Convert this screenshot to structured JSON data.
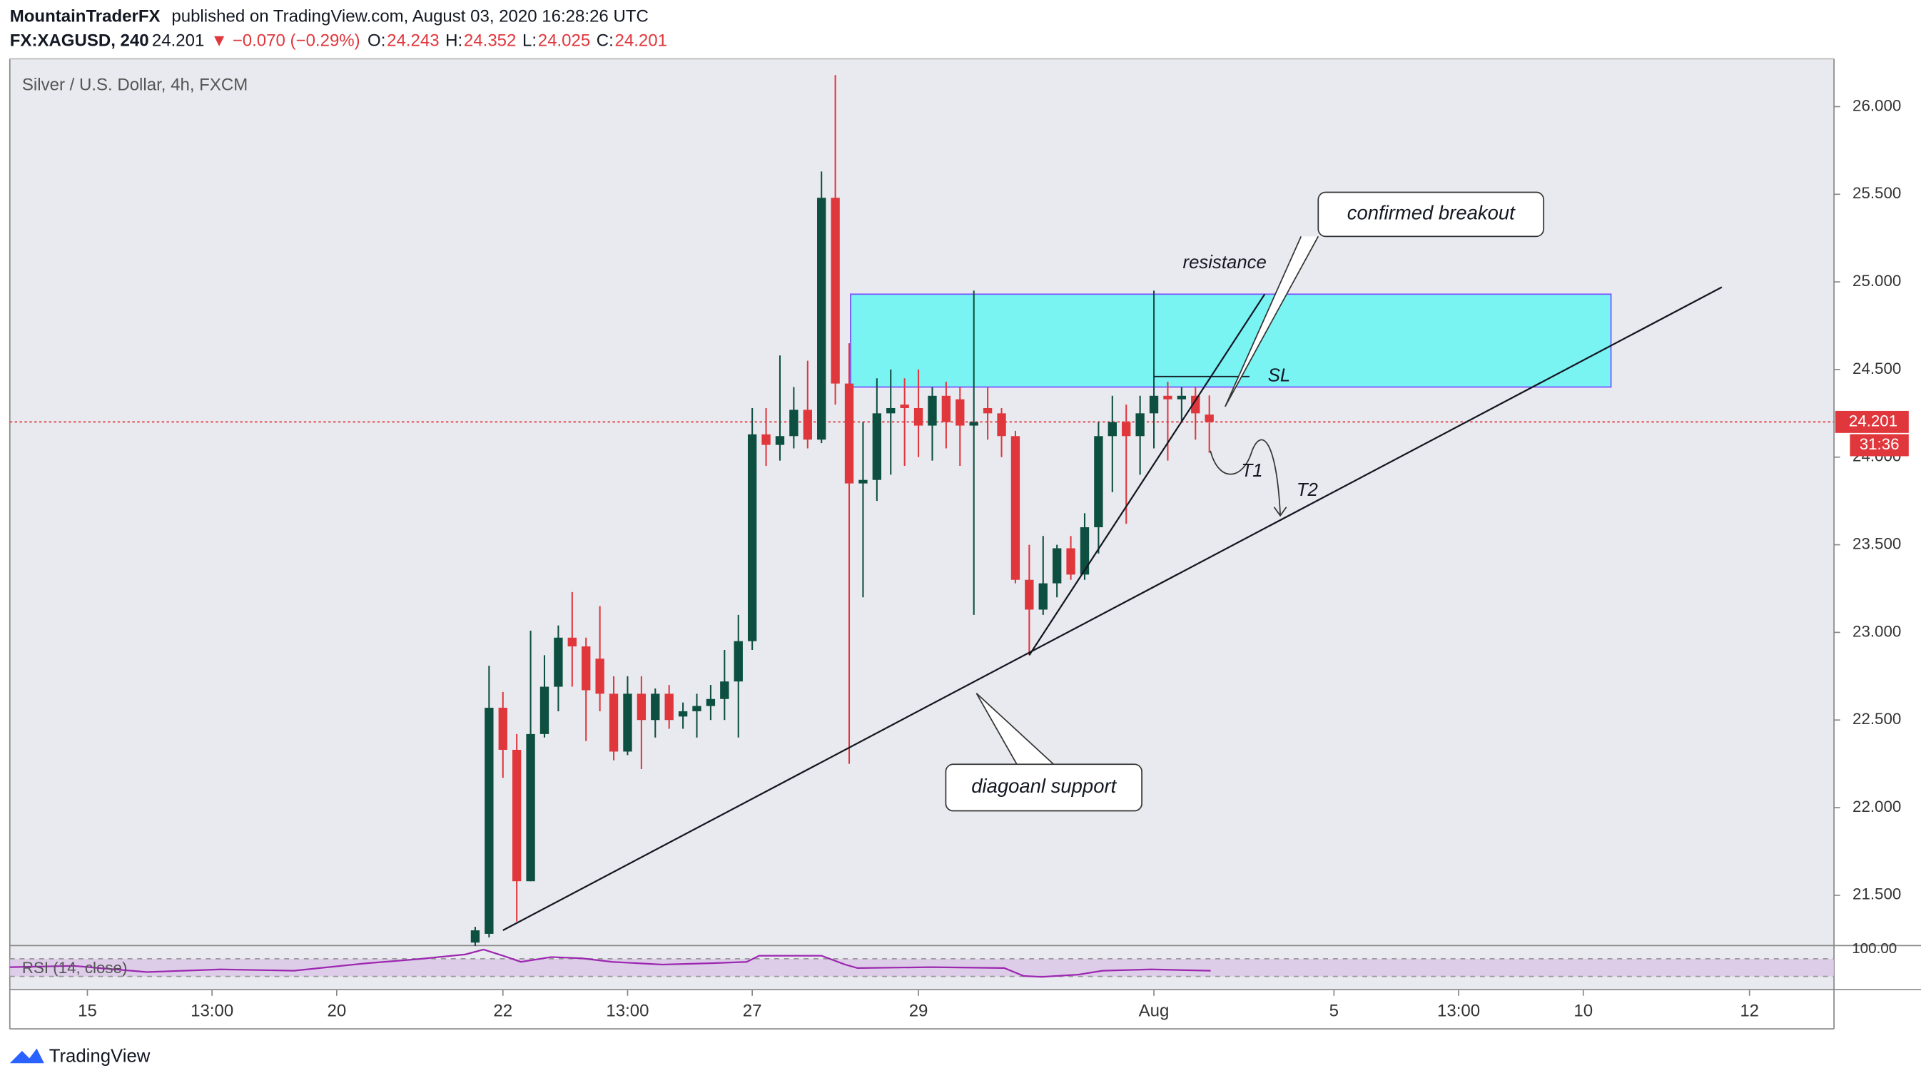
{
  "header": {
    "publisher": "MountainTraderFX",
    "published": "published on TradingView.com, August 03, 2020 16:28:26 UTC",
    "symbol": "FX:XAGUSD, 240",
    "last": "24.201",
    "change": "▼ −0.070 (−0.29%)",
    "quote": [
      {
        "k": "O:",
        "v": "24.243"
      },
      {
        "k": "H:",
        "v": "24.352"
      },
      {
        "k": "L:",
        "v": "24.025"
      },
      {
        "k": "C:",
        "v": "24.201"
      }
    ]
  },
  "footer": "TradingView",
  "chart_data": [
    {
      "type": "candlestick",
      "title": "Silver / U.S. Dollar, 4h, FXCM",
      "up_color": "#0d4f40",
      "down_color": "#e0373d",
      "x": [
        0,
        1,
        2,
        3,
        4,
        5,
        6,
        7,
        8,
        9,
        10,
        11,
        12,
        13,
        14,
        15,
        16,
        17,
        18,
        19,
        20,
        21,
        22,
        23,
        24,
        25,
        26,
        27,
        28,
        29,
        30,
        31,
        32,
        33,
        34,
        35,
        36,
        37,
        38,
        39,
        40,
        41,
        42,
        43,
        44,
        45,
        46,
        47,
        48,
        49,
        50,
        51,
        52,
        53
      ],
      "open": [
        21.23,
        21.28,
        22.57,
        22.33,
        21.58,
        22.42,
        22.69,
        22.97,
        22.92,
        22.85,
        22.65,
        22.32,
        22.65,
        22.5,
        22.65,
        22.52,
        22.55,
        22.58,
        22.62,
        22.72,
        22.95,
        24.13,
        24.07,
        24.12,
        24.27,
        24.1,
        25.48,
        24.42,
        23.85,
        23.87,
        24.25,
        24.3,
        24.28,
        24.18,
        24.35,
        24.33,
        24.18,
        24.28,
        24.25,
        24.12,
        23.3,
        23.13,
        23.28,
        23.48,
        23.33,
        23.6,
        24.12,
        24.2,
        24.12,
        24.25,
        24.35,
        24.33,
        24.35,
        24.243
      ],
      "high": [
        21.32,
        22.81,
        22.66,
        22.42,
        23.01,
        22.87,
        23.04,
        23.23,
        22.97,
        23.15,
        22.75,
        22.75,
        22.75,
        22.68,
        22.7,
        22.6,
        22.65,
        22.7,
        22.9,
        23.1,
        24.28,
        24.28,
        24.58,
        24.4,
        24.55,
        25.63,
        26.18,
        24.65,
        24.2,
        24.45,
        24.5,
        24.45,
        24.5,
        24.4,
        24.43,
        24.4,
        24.95,
        24.4,
        24.28,
        24.15,
        23.5,
        23.55,
        23.5,
        23.55,
        23.68,
        24.2,
        24.35,
        24.3,
        24.35,
        24.95,
        24.43,
        24.4,
        24.4,
        24.352
      ],
      "low": [
        21.21,
        21.26,
        22.17,
        21.35,
        21.58,
        22.4,
        22.55,
        22.69,
        22.38,
        22.55,
        22.27,
        22.3,
        22.22,
        22.4,
        22.45,
        22.45,
        22.4,
        22.5,
        22.5,
        22.4,
        22.9,
        23.95,
        23.98,
        24.05,
        24.05,
        24.08,
        24.3,
        22.25,
        23.2,
        23.75,
        23.9,
        23.95,
        24.0,
        23.98,
        24.05,
        23.95,
        23.1,
        24.1,
        24.0,
        23.28,
        22.87,
        23.1,
        23.2,
        23.3,
        23.3,
        23.45,
        23.8,
        23.62,
        23.9,
        24.05,
        23.98,
        24.2,
        24.1,
        24.025
      ],
      "close": [
        21.3,
        22.57,
        22.33,
        21.58,
        22.42,
        22.69,
        22.97,
        22.92,
        22.67,
        22.65,
        22.32,
        22.65,
        22.5,
        22.65,
        22.5,
        22.55,
        22.58,
        22.62,
        22.72,
        22.95,
        24.13,
        24.07,
        24.12,
        24.27,
        24.1,
        25.48,
        24.42,
        23.85,
        23.87,
        24.25,
        24.28,
        24.28,
        24.18,
        24.35,
        24.2,
        24.18,
        24.2,
        24.25,
        24.12,
        23.3,
        23.13,
        23.28,
        23.48,
        23.33,
        23.6,
        24.12,
        24.2,
        24.12,
        24.25,
        24.35,
        24.33,
        24.35,
        24.25,
        24.201
      ],
      "xlim": [
        -33.6,
        98.1
      ],
      "xticks": [
        {
          "value": -28,
          "label": "15"
        },
        {
          "value": -19,
          "label": "13:00"
        },
        {
          "value": -10,
          "label": "20"
        },
        {
          "value": 2,
          "label": "22"
        },
        {
          "value": 11,
          "label": "13:00"
        },
        {
          "value": 20,
          "label": "27"
        },
        {
          "value": 32,
          "label": "29"
        },
        {
          "value": 49,
          "label": "Aug"
        },
        {
          "value": 62,
          "label": "5"
        },
        {
          "value": 71,
          "label": "13:00"
        },
        {
          "value": 80,
          "label": "10"
        },
        {
          "value": 92,
          "label": "12"
        }
      ],
      "ylim": [
        21.213,
        26.273
      ],
      "yticks": [
        {
          "value": 21.5,
          "label": "21.500"
        },
        {
          "value": 22,
          "label": "22.000"
        },
        {
          "value": 22.5,
          "label": "22.500"
        },
        {
          "value": 23,
          "label": "23.000"
        },
        {
          "value": 23.5,
          "label": "23.500"
        },
        {
          "value": 24,
          "label": "24.000"
        },
        {
          "value": 24.5,
          "label": "24.500"
        },
        {
          "value": 25,
          "label": "25.000"
        },
        {
          "value": 25.5,
          "label": "25.500"
        },
        {
          "value": 26,
          "label": "26.000"
        }
      ],
      "countdown": "31:36",
      "zone": {
        "label": "resistance",
        "color": "#7af3f3",
        "x": [
          27.1,
          82.0
        ],
        "y": [
          24.4,
          24.93
        ]
      },
      "trendlines": [
        {
          "x": [
            2.0,
            90.0
          ],
          "y": [
            21.3,
            24.97
          ]
        },
        {
          "x": [
            40.0,
            57.0
          ],
          "y": [
            22.87,
            24.93
          ]
        }
      ],
      "stop_loss": {
        "label": "SL",
        "x": [
          49.0,
          55.9
        ],
        "y": 24.46
      },
      "callouts": [
        "confirmed breakout",
        "diagoanl support"
      ],
      "targets": [
        "T1",
        "T2"
      ]
    },
    {
      "type": "line",
      "title": "RSI (14, close)",
      "color": "#9c27b0",
      "x": [
        -33.6,
        -29.0,
        -23.7,
        -18.4,
        -13.1,
        -7.8,
        -4.2,
        -0.7,
        0.6,
        2.0,
        3.3,
        5.5,
        7.7,
        9.9,
        13.5,
        17.0,
        19.6,
        20.5,
        25.0,
        26.7,
        27.6,
        32.9,
        38.2,
        39.6,
        40.9,
        43.5,
        45.3,
        48.8,
        53.1
      ],
      "values": [
        51,
        54,
        40,
        46,
        43,
        60,
        69,
        80,
        91,
        77,
        63,
        74,
        71,
        63,
        57,
        60,
        63,
        77,
        77,
        57,
        49,
        51,
        49,
        31,
        29,
        34,
        43,
        46,
        43
      ],
      "xlim": [
        -33.6,
        98.1
      ],
      "ylim": [
        0,
        100
      ],
      "yticks": [
        {
          "value": 100,
          "label": "100.00"
        }
      ],
      "bands": [
        30,
        70
      ]
    }
  ]
}
